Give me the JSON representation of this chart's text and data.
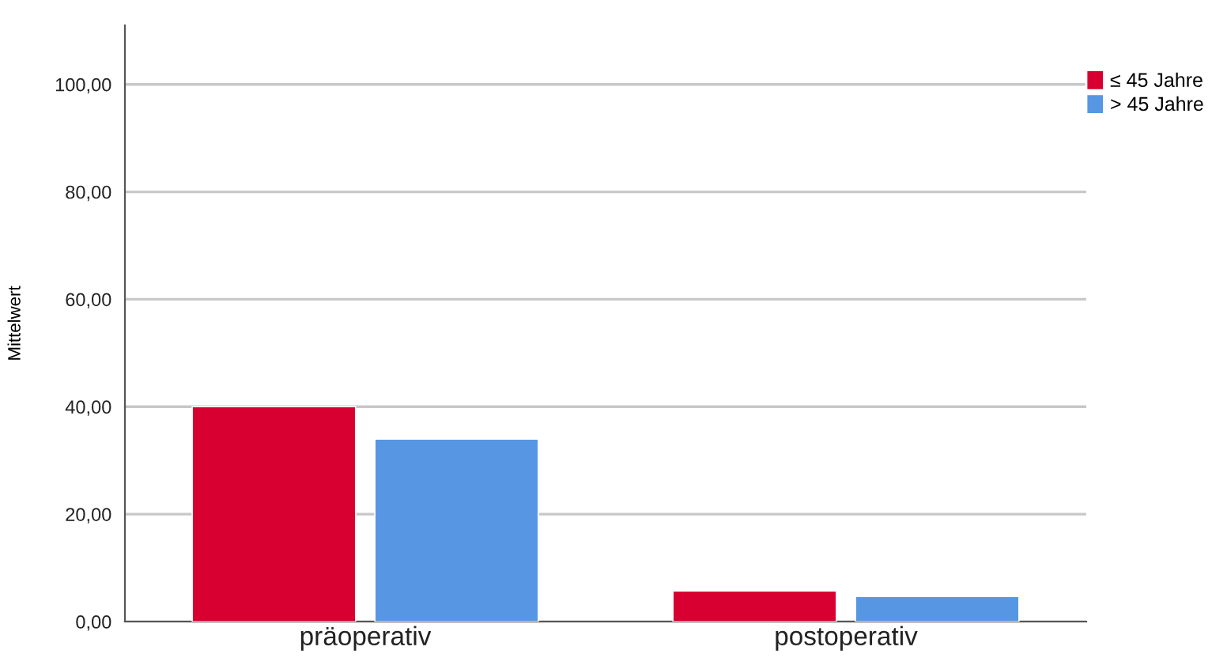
{
  "chart_data": {
    "type": "bar",
    "ylabel": "Mittelwert",
    "categories": [
      "präoperativ",
      "postoperativ"
    ],
    "series": [
      {
        "name": "≤ 45 Jahre",
        "color": "#d70030",
        "values": [
          40.0,
          5.7
        ]
      },
      {
        "name": "> 45 Jahre",
        "color": "#5796e3",
        "values": [
          34.0,
          4.7
        ]
      }
    ],
    "ylim": [
      0,
      111
    ],
    "yticks": [
      {
        "value": 0,
        "label": "0,00"
      },
      {
        "value": 20,
        "label": "20,00"
      },
      {
        "value": 40,
        "label": "40,00"
      },
      {
        "value": 60,
        "label": "60,00"
      },
      {
        "value": 80,
        "label": "80,00"
      },
      {
        "value": 100,
        "label": "100,00"
      }
    ],
    "grid": "y",
    "legend": "top right"
  }
}
